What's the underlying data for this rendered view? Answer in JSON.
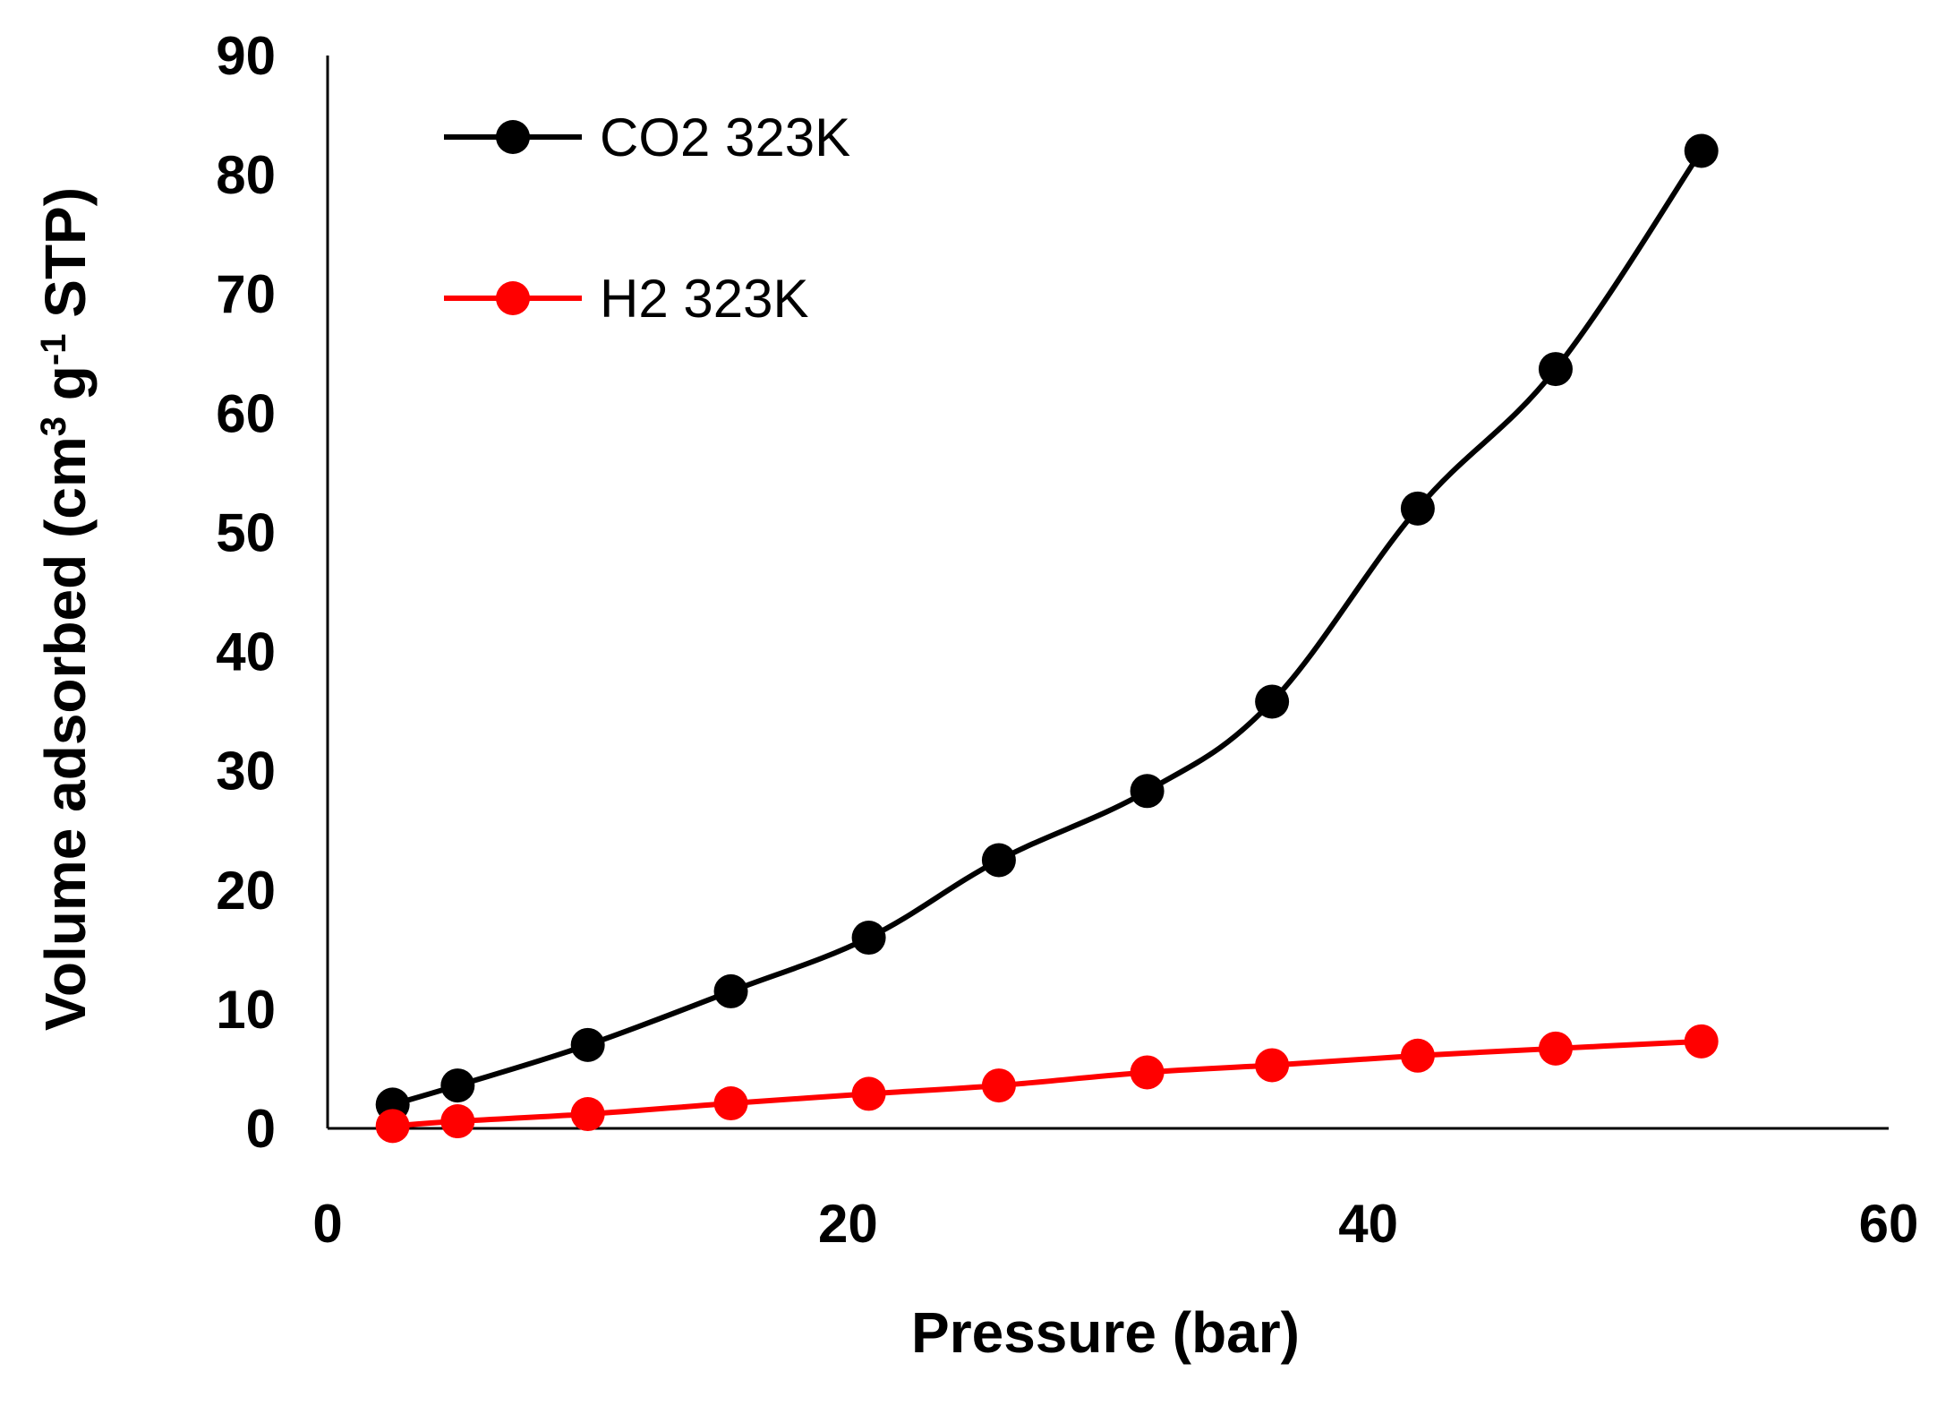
{
  "chart_data": {
    "type": "line",
    "xlabel": "Pressure (bar)",
    "ylabel": {
      "prefix": "Volume adsorbed (cm",
      "sup1": "3",
      "mid": " g",
      "sup2": "-1",
      "suffix": " STP)"
    },
    "xlim": [
      0,
      60
    ],
    "ylim": [
      0,
      90
    ],
    "xticks": [
      0,
      20,
      40,
      60
    ],
    "yticks": [
      0,
      10,
      20,
      30,
      40,
      50,
      60,
      70,
      80,
      90
    ],
    "grid": false,
    "legend_position": "top-left",
    "series": [
      {
        "name": "CO2 323K",
        "color": "#000000",
        "marker": "circle",
        "smooth": true,
        "x": [
          2.5,
          5.0,
          10.0,
          15.5,
          20.8,
          25.8,
          31.5,
          36.3,
          41.9,
          47.2,
          52.8
        ],
        "y": [
          2.0,
          3.6,
          7.0,
          11.5,
          16.0,
          22.5,
          28.3,
          35.8,
          52.0,
          63.7,
          82.0
        ]
      },
      {
        "name": "H2 323K",
        "color": "#ff0000",
        "marker": "circle",
        "smooth": true,
        "x": [
          2.5,
          5.0,
          10.0,
          15.5,
          20.8,
          25.8,
          31.5,
          36.3,
          41.9,
          47.2,
          52.8
        ],
        "y": [
          0.2,
          0.6,
          1.2,
          2.1,
          2.9,
          3.6,
          4.7,
          5.3,
          6.1,
          6.7,
          7.3
        ]
      }
    ]
  }
}
